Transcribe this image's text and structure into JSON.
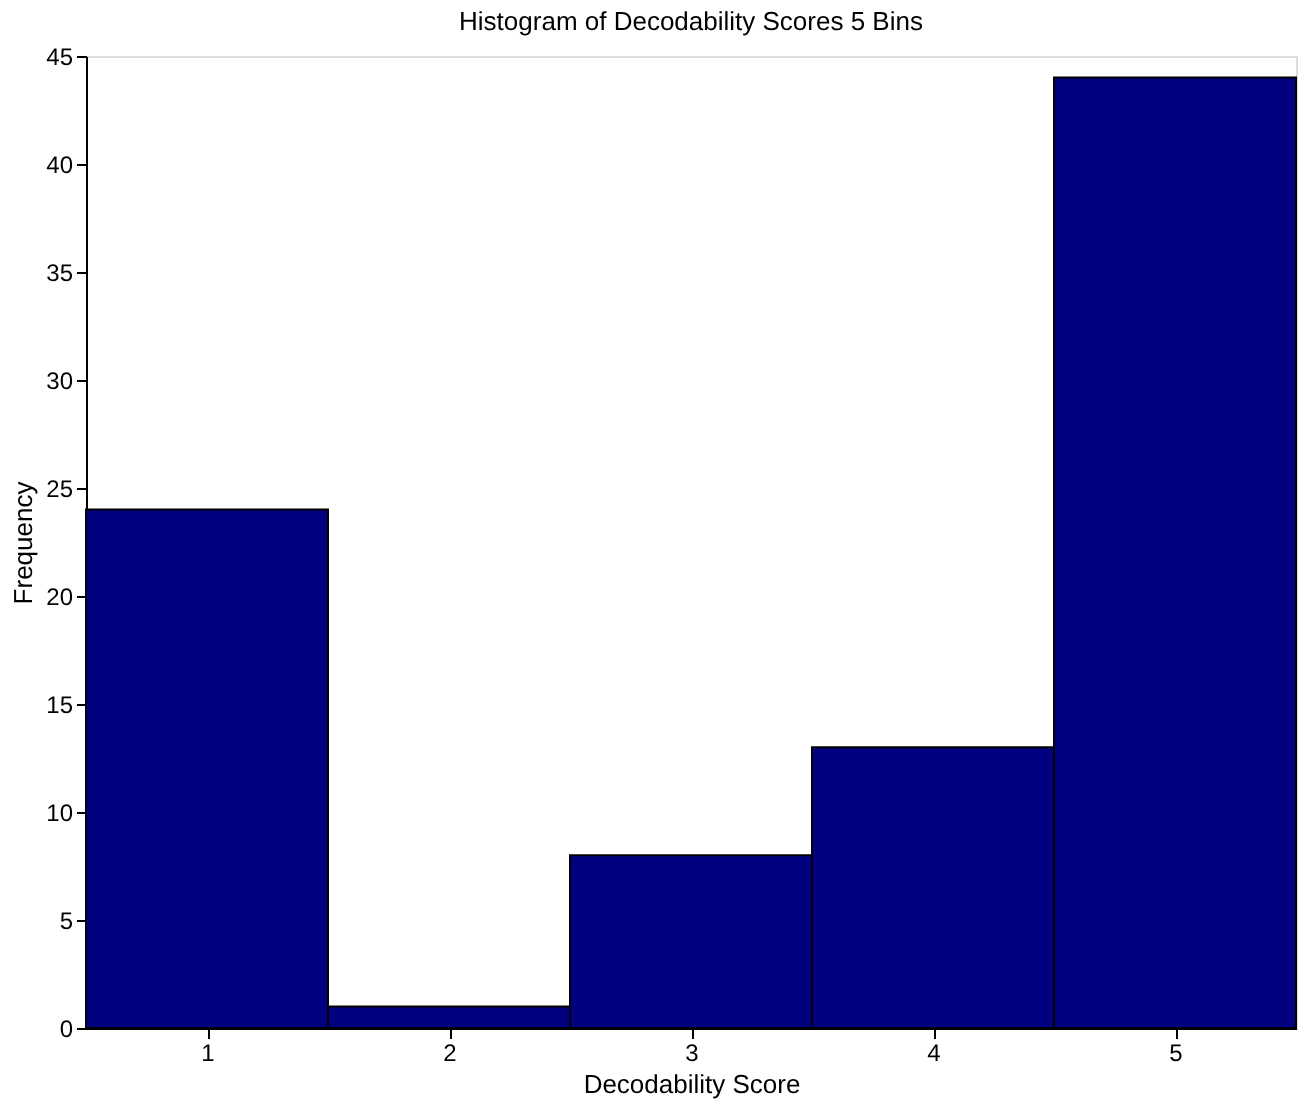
{
  "chart_data": {
    "type": "histogram",
    "title": "Histogram of Decodability Scores 5 Bins",
    "xlabel": "Decodability Score",
    "ylabel": "Frequency",
    "bins": [
      0.5,
      1.5,
      2.5,
      3.5,
      4.5,
      5.5
    ],
    "values": [
      24,
      1,
      8,
      13,
      44
    ],
    "color": "#000080",
    "xlim": [
      0.5,
      5.5
    ],
    "xticks": [
      1,
      2,
      3,
      4,
      5
    ],
    "ylim": [
      0,
      45
    ],
    "yticks": [
      0,
      5,
      10,
      15,
      20,
      25,
      30,
      35,
      40,
      45
    ],
    "grid": false
  }
}
